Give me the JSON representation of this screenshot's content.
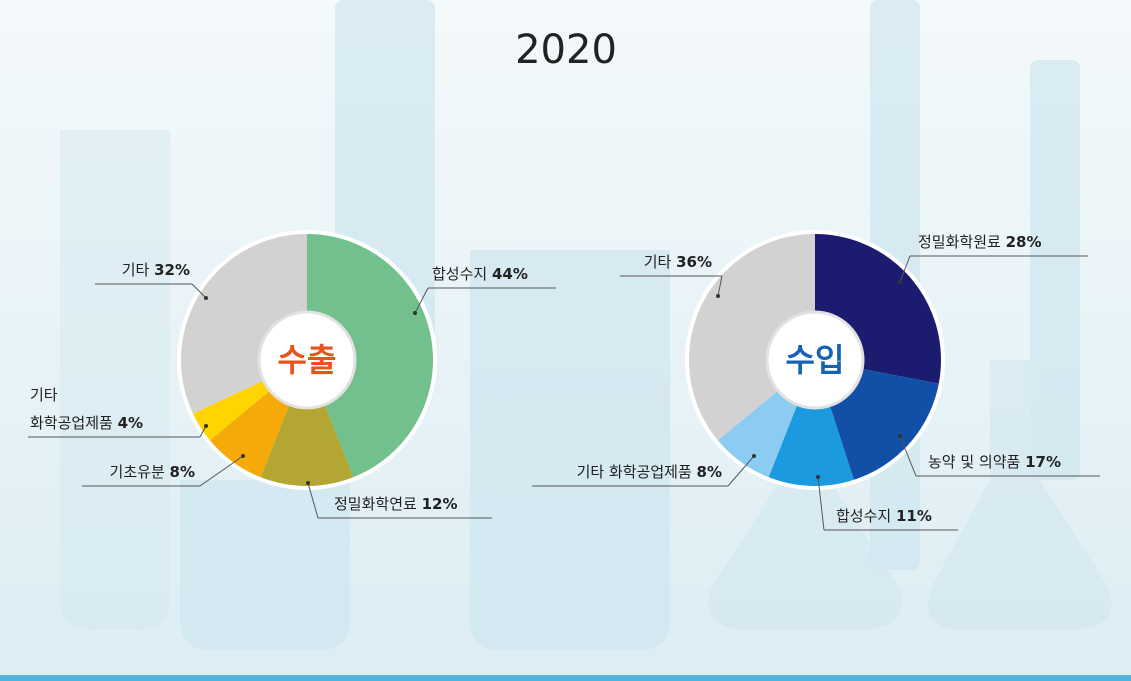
{
  "title": "2020",
  "chart_data": [
    {
      "type": "pie",
      "center_label": "수출",
      "center_color": "#e8521c",
      "categories": [
        "합성수지",
        "정밀화학연료",
        "기초유분",
        "기타 화학공업제품",
        "기타"
      ],
      "values": [
        44,
        12,
        8,
        4,
        32
      ],
      "value_labels": [
        "44%",
        "12%",
        "8%",
        "4%",
        "32%"
      ],
      "colors": [
        "#72c08e",
        "#b3a632",
        "#f5aa0a",
        "#ffd400",
        "#d2d2d2"
      ]
    },
    {
      "type": "pie",
      "center_label": "수입",
      "center_color": "#1763b3",
      "categories": [
        "정밀화학원료",
        "농약 및 의약품",
        "합성수지",
        "기타 화학공업제품",
        "기타"
      ],
      "values": [
        28,
        17,
        11,
        8,
        36
      ],
      "value_labels": [
        "28%",
        "17%",
        "11%",
        "8%",
        "36%"
      ],
      "colors": [
        "#1b1c6f",
        "#1150a6",
        "#1c9ae0",
        "#8ccbf2",
        "#d2d2d2"
      ]
    }
  ]
}
